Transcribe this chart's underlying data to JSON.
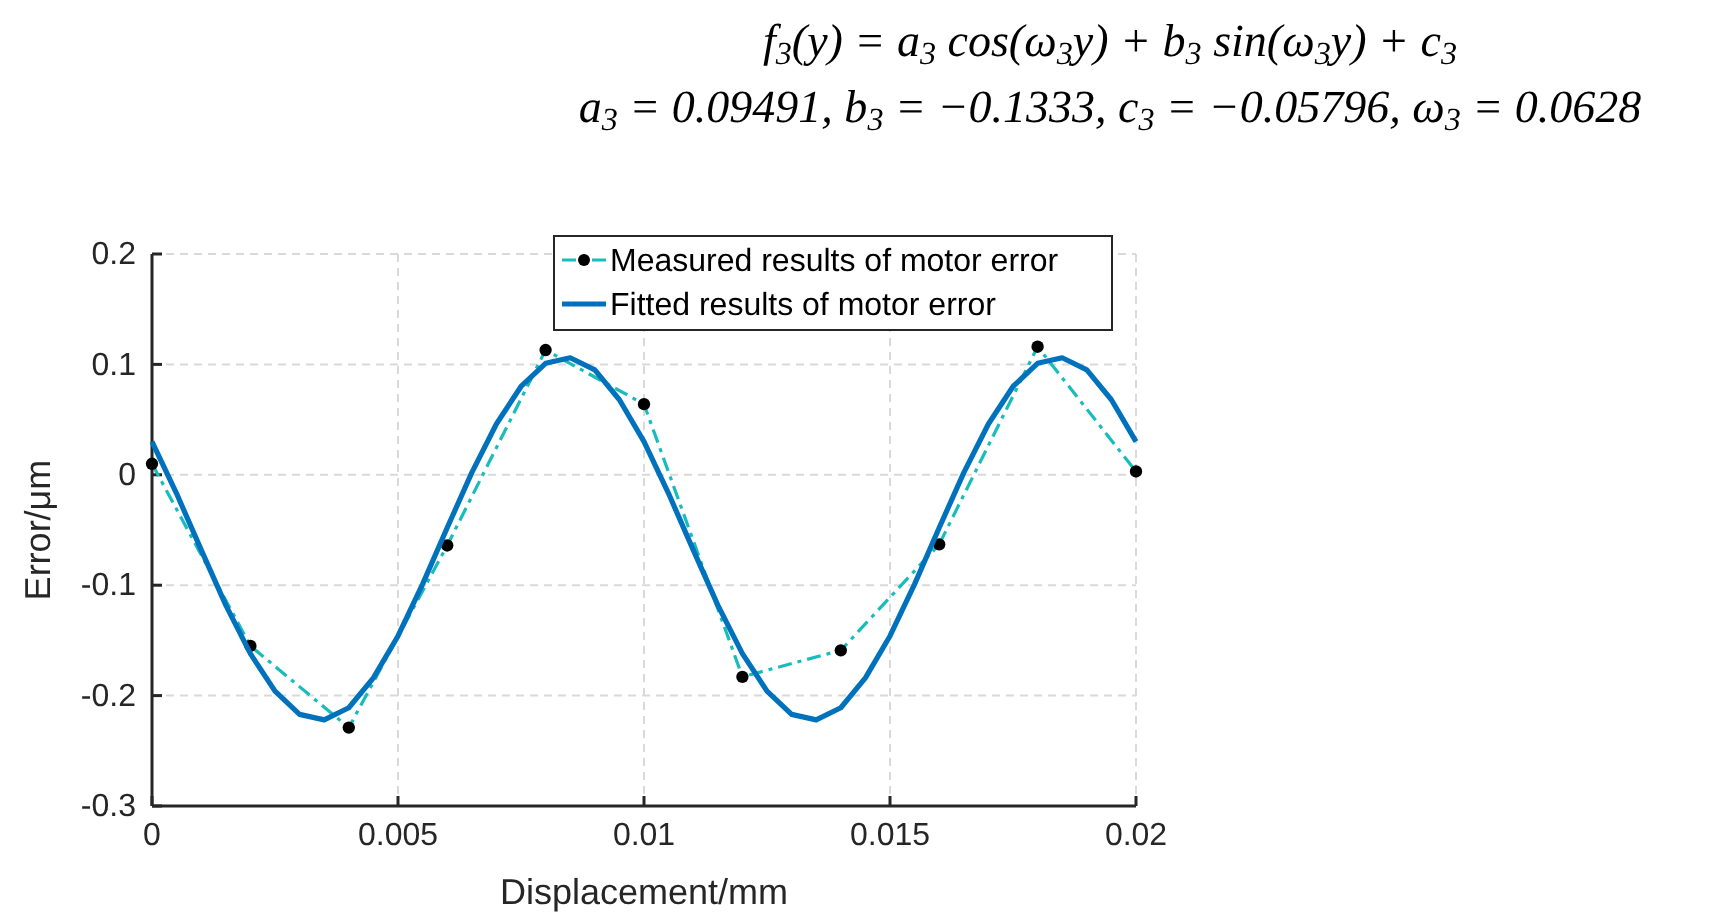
{
  "chart_data": {
    "type": "line",
    "xlabel": "Displacement/mm",
    "ylabel": "Error/μm",
    "annotations": [
      "f$_{3}$(y) = a$_{3}$ cos(ω$_{3}$y) + b$_{3}$ sin(ω$_{3}$y) + c$_{3}$",
      "a$_{3}$ = 0.09491, b$_{3}$ = −0.1333, c$_{3}$ = −0.05796, ω$_{3}$ = 0.0628"
    ],
    "xlim": [
      0,
      0.02
    ],
    "xticks": [
      0,
      0.005,
      0.01,
      0.015,
      0.02
    ],
    "ylim": [
      -0.3,
      0.2
    ],
    "yticks": [
      -0.3,
      -0.2,
      -0.1,
      0,
      0.1,
      0.2
    ],
    "grid": true,
    "legend": "top right",
    "series": [
      {
        "name": "Measured results of motor error",
        "color": "#17bcbc",
        "marker": "circle",
        "line_style": "dashed",
        "x": [
          0,
          0.002,
          0.004,
          0.006,
          0.008,
          0.01,
          0.012,
          0.014,
          0.016,
          0.018,
          0.02
        ],
        "values": [
          0.01,
          -0.155,
          -0.229,
          -0.064,
          0.113,
          0.064,
          -0.183,
          -0.159,
          -0.063,
          0.116,
          0.003
        ]
      },
      {
        "name": "Fitted results of motor error",
        "color": "#0072bd",
        "marker": "none",
        "line_style": "solid",
        "x": [
          0,
          0.0005,
          0.001,
          0.0015,
          0.002,
          0.0025,
          0.003,
          0.0035,
          0.004,
          0.0045,
          0.005,
          0.0055,
          0.006,
          0.0065,
          0.007,
          0.0075,
          0.008,
          0.0085,
          0.009,
          0.0095,
          0.01,
          0.0105,
          0.011,
          0.0115,
          0.012,
          0.0125,
          0.013,
          0.0135,
          0.014,
          0.0145,
          0.015,
          0.0155,
          0.016,
          0.0165,
          0.017,
          0.0175,
          0.018,
          0.0185,
          0.019,
          0.0195,
          0.02
        ],
        "values": [
          0.03,
          -0.017,
          -0.068,
          -0.118,
          -0.162,
          -0.196,
          -0.217,
          -0.222,
          -0.211,
          -0.184,
          -0.146,
          -0.099,
          -0.048,
          0.002,
          0.046,
          0.08,
          0.101,
          0.106,
          0.095,
          0.068,
          0.03,
          -0.017,
          -0.068,
          -0.118,
          -0.162,
          -0.196,
          -0.217,
          -0.222,
          -0.211,
          -0.184,
          -0.146,
          -0.099,
          -0.048,
          0.002,
          0.046,
          0.08,
          0.101,
          0.106,
          0.095,
          0.068,
          0.03
        ]
      }
    ]
  }
}
